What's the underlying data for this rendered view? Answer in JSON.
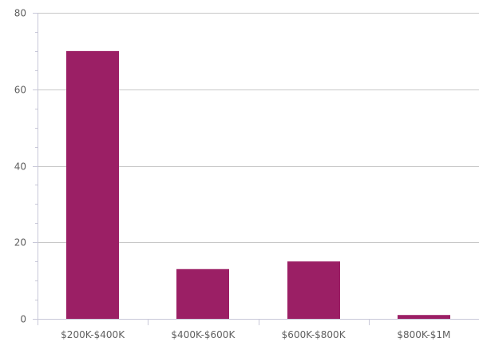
{
  "chart_data": {
    "type": "bar",
    "categories": [
      "$200K-$400K",
      "$400K-$600K",
      "$600K-$800K",
      "$800K-$1M"
    ],
    "values": [
      70,
      13,
      15,
      1
    ],
    "title": "",
    "xlabel": "",
    "ylabel": "",
    "ylim": [
      0,
      80
    ],
    "yticks": [
      0,
      20,
      40,
      60,
      80
    ],
    "yticks_labels": [
      "0",
      "20",
      "40",
      "60",
      "80"
    ],
    "grid": true,
    "bar_color": "#9b1f65",
    "grid_color": "#c8c8c8",
    "axis_color": "#c8c8d8"
  }
}
